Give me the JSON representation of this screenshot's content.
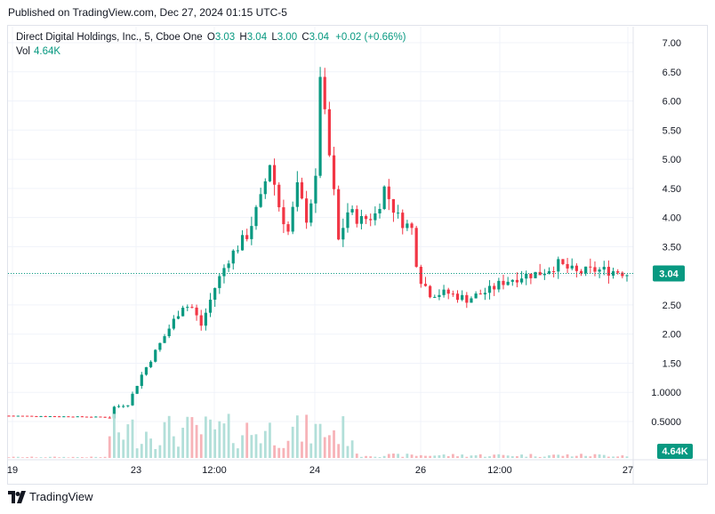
{
  "header": {
    "published_text": "Published on TradingView.com, Dec 27, 2024 01:15 UTC-5"
  },
  "legend": {
    "symbol": "Direct Digital Holdings, Inc., 5, Cboe One",
    "open_label": "O",
    "open_value": "3.03",
    "high_label": "H",
    "high_value": "3.04",
    "low_label": "L",
    "low_value": "3.00",
    "close_label": "C",
    "close_value": "3.04",
    "change": "+0.02 (+0.66%)",
    "vol_label": "Vol",
    "vol_value": "4.64K"
  },
  "colors": {
    "up": "#089981",
    "down": "#f23645",
    "grid": "#f0f3fa",
    "text": "#131722"
  },
  "footer": {
    "brand": "TradingView"
  },
  "chart_data": {
    "type": "candlestick",
    "y_axis": {
      "min": 0.5,
      "max": 7.0,
      "ticks": [
        "7.00",
        "6.50",
        "6.00",
        "5.50",
        "5.00",
        "4.50",
        "4.00",
        "3.50",
        "3.00",
        "2.50",
        "2.00",
        "1.50",
        "1.0000",
        "0.5000"
      ]
    },
    "x_axis_labels": [
      "19",
      "23",
      "12:00",
      "24",
      "26",
      "12:00",
      "27"
    ],
    "last_price_label": "3.04",
    "last_price": 3.04,
    "volume_label": "4.64K",
    "price_path": [
      [
        0,
        0.6
      ],
      [
        10,
        0.59
      ],
      [
        20,
        0.58
      ],
      [
        22,
        0.56
      ],
      [
        23,
        0.75
      ],
      [
        26,
        0.8
      ],
      [
        29,
        1.3
      ],
      [
        32,
        1.7
      ],
      [
        35,
        2.1
      ],
      [
        38,
        2.5
      ],
      [
        40,
        2.45
      ],
      [
        42,
        2.15
      ],
      [
        45,
        2.8
      ],
      [
        48,
        3.3
      ],
      [
        52,
        3.7
      ],
      [
        55,
        4.3
      ],
      [
        57,
        4.95
      ],
      [
        59,
        4.2
      ],
      [
        61,
        3.75
      ],
      [
        63,
        4.5
      ],
      [
        65,
        4.0
      ],
      [
        67,
        4.6
      ],
      [
        68,
        6.5
      ],
      [
        69,
        5.7
      ],
      [
        71,
        4.4
      ],
      [
        72,
        3.6
      ],
      [
        74,
        4.1
      ],
      [
        77,
        3.95
      ],
      [
        80,
        4.05
      ],
      [
        82,
        4.5
      ],
      [
        85,
        4.0
      ],
      [
        88,
        3.8
      ],
      [
        89,
        3.25
      ],
      [
        89.5,
        3.0
      ],
      [
        92,
        2.7
      ],
      [
        96,
        2.7
      ],
      [
        100,
        2.6
      ],
      [
        105,
        2.75
      ],
      [
        108,
        2.9
      ],
      [
        112,
        3.0
      ],
      [
        116,
        3.05
      ],
      [
        120,
        3.2
      ],
      [
        124,
        3.05
      ],
      [
        128,
        3.1
      ],
      [
        133,
        3.08
      ],
      [
        135,
        3.04
      ]
    ]
  }
}
